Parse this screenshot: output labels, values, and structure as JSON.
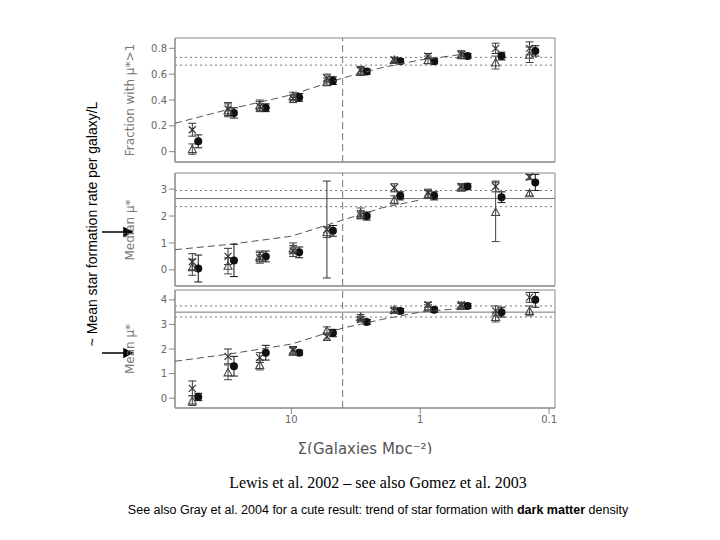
{
  "slide": {
    "side_label": "~ Mean star formation rate per galaxy/L",
    "caption": "Lewis et al. 2002 – see also Gomez et al. 2003",
    "footnote": {
      "before": "See also Gray et al. 2004 for a cute result: trend of star formation with ",
      "bold": "dark matter",
      "after": " density"
    }
  },
  "chart_data": [
    {
      "type": "scatter",
      "y_label": "Fraction with μ*>1",
      "log": "x",
      "tick_labels": "y",
      "xlim": [
        80,
        0.09
      ],
      "xticks": [
        10,
        1,
        0.1
      ],
      "ylim": [
        -0.08,
        0.88
      ],
      "yticks": [
        0,
        0.2,
        0.4,
        0.6,
        0.8
      ],
      "reference_lines": [
        {
          "y": 0.67,
          "line_style": "dotted"
        },
        {
          "y": 0.73,
          "line_style": "dotted"
        },
        {
          "x": 4,
          "line_style": "dashed"
        }
      ],
      "series": [
        {
          "type": "scatter",
          "marker": "circle",
          "color": "#111111",
          "x": [
            52.8,
            27.9,
            15.8,
            8.7,
            4.76,
            2.6,
            1.43,
            0.78,
            0.43,
            0.234,
            0.128
          ],
          "values": [
            0.08,
            0.3,
            0.34,
            0.42,
            0.55,
            0.62,
            0.7,
            0.7,
            0.74,
            0.74,
            0.78
          ],
          "errors": [
            0.05,
            0.04,
            0.03,
            0.03,
            0.03,
            0.02,
            0.02,
            0.02,
            0.02,
            0.03,
            0.04
          ]
        },
        {
          "type": "scatter",
          "marker": "x",
          "color": "#333333",
          "x": [
            58.7,
            31,
            17.6,
            9.7,
            5.3,
            2.9,
            1.59,
            0.87,
            0.48,
            0.26,
            0.142
          ],
          "values": [
            0.17,
            0.33,
            0.35,
            0.41,
            0.57,
            0.63,
            0.71,
            0.74,
            0.75,
            0.8,
            0.8
          ],
          "errors": [
            0.05,
            0.05,
            0.04,
            0.03,
            0.03,
            0.03,
            0.02,
            0.02,
            0.03,
            0.04,
            0.05
          ]
        },
        {
          "type": "scatter",
          "marker": "triangle",
          "color": "#444444",
          "x": [
            58.7,
            31,
            17.6,
            9.7,
            5.3,
            2.9,
            1.59,
            0.87,
            0.48,
            0.26,
            0.142
          ],
          "values": [
            0.02,
            0.32,
            0.36,
            0.43,
            0.54,
            0.62,
            0.71,
            0.71,
            0.75,
            0.69,
            0.75
          ],
          "errors": [
            0.04,
            0.05,
            0.04,
            0.03,
            0.03,
            0.03,
            0.02,
            0.03,
            0.03,
            0.05,
            0.06
          ]
        },
        {
          "type": "line",
          "line_style": "dashed",
          "color": "#555555",
          "x": [
            80,
            30,
            10,
            4,
            2,
            1,
            0.5
          ],
          "values": [
            0.22,
            0.33,
            0.44,
            0.57,
            0.65,
            0.71,
            0.75
          ]
        }
      ]
    },
    {
      "type": "scatter",
      "y_label": "Median μ*",
      "log": "x",
      "tick_labels": "y",
      "xlim": [
        80,
        0.09
      ],
      "xticks": [
        10,
        1,
        0.1
      ],
      "ylim": [
        -0.6,
        3.6
      ],
      "yticks": [
        0,
        1,
        2,
        3
      ],
      "reference_lines": [
        {
          "y": 2.65,
          "line_style": "solid"
        },
        {
          "y": 2.35,
          "line_style": "dotted"
        },
        {
          "y": 2.95,
          "line_style": "dotted"
        },
        {
          "x": 4,
          "line_style": "dashed"
        }
      ],
      "series": [
        {
          "type": "scatter",
          "marker": "circle",
          "color": "#111111",
          "x": [
            52.8,
            27.9,
            15.8,
            8.7,
            4.76,
            2.6,
            1.43,
            0.78,
            0.43,
            0.234,
            0.128
          ],
          "values": [
            0.05,
            0.35,
            0.5,
            0.65,
            1.45,
            2.0,
            2.75,
            2.75,
            3.1,
            2.7,
            3.25
          ],
          "errors": [
            0.5,
            0.6,
            0.2,
            0.2,
            0.2,
            0.15,
            0.15,
            0.15,
            0.1,
            0.2,
            0.3
          ]
        },
        {
          "type": "scatter",
          "marker": "x",
          "color": "#333333",
          "x": [
            58.7,
            31,
            17.6,
            9.7,
            5.3,
            2.9,
            1.59,
            0.87,
            0.48,
            0.26,
            0.142
          ],
          "values": [
            0.3,
            0.5,
            0.45,
            0.7,
            1.5,
            2.05,
            3.05,
            2.85,
            3.1,
            3.1,
            3.45
          ],
          "errors": [
            0.3,
            0.3,
            0.2,
            0.2,
            1.8,
            0.15,
            0.15,
            0.15,
            0.1,
            0.2,
            0.1
          ]
        },
        {
          "type": "scatter",
          "marker": "triangle",
          "color": "#444444",
          "x": [
            58.7,
            31,
            17.6,
            9.7,
            5.3,
            2.9,
            1.59,
            0.87,
            0.48,
            0.26,
            0.142
          ],
          "values": [
            0.1,
            0.15,
            0.5,
            0.8,
            1.4,
            2.1,
            2.6,
            2.8,
            3.05,
            2.15,
            2.85
          ],
          "errors": [
            0.3,
            0.3,
            0.2,
            0.2,
            0.2,
            0.2,
            0.15,
            0.15,
            0.1,
            1.1,
            0.1
          ]
        },
        {
          "type": "line",
          "line_style": "dashed",
          "color": "#555555",
          "x": [
            80,
            30,
            10,
            4,
            2,
            1
          ],
          "values": [
            0.75,
            0.95,
            1.25,
            1.85,
            2.3,
            2.6
          ]
        }
      ]
    },
    {
      "type": "scatter",
      "y_label": "Mean μ*",
      "x_label": "Σ(Galaxies Mpc⁻²)",
      "log": "x",
      "tick_labels": true,
      "xlim": [
        80,
        0.09
      ],
      "xticks": [
        10,
        1,
        0.1
      ],
      "ylim": [
        -0.4,
        4.4
      ],
      "yticks": [
        0,
        1,
        2,
        3,
        4
      ],
      "reference_lines": [
        {
          "y": 3.5,
          "line_style": "solid"
        },
        {
          "y": 3.3,
          "line_style": "dotted"
        },
        {
          "y": 3.75,
          "line_style": "dotted"
        },
        {
          "x": 4,
          "line_style": "dashed"
        }
      ],
      "series": [
        {
          "type": "scatter",
          "marker": "circle",
          "color": "#111111",
          "x": [
            52.8,
            27.9,
            15.8,
            8.7,
            4.76,
            2.6,
            1.43,
            0.78,
            0.43,
            0.234,
            0.128
          ],
          "values": [
            0.05,
            1.3,
            1.85,
            1.85,
            2.65,
            3.1,
            3.55,
            3.6,
            3.75,
            3.5,
            4.0
          ],
          "errors": [
            0.15,
            0.4,
            0.3,
            0.1,
            0.15,
            0.1,
            0.1,
            0.1,
            0.1,
            0.2,
            0.3
          ]
        },
        {
          "type": "scatter",
          "marker": "x",
          "color": "#333333",
          "x": [
            58.7,
            31,
            17.6,
            9.7,
            5.3,
            2.9,
            1.59,
            0.87,
            0.48,
            0.26,
            0.142
          ],
          "values": [
            0.4,
            1.7,
            1.65,
            1.95,
            2.5,
            3.2,
            3.55,
            3.8,
            3.8,
            3.55,
            4.1
          ],
          "errors": [
            0.3,
            0.3,
            0.2,
            0.15,
            0.15,
            0.1,
            0.1,
            0.1,
            0.1,
            0.2,
            0.2
          ]
        },
        {
          "type": "scatter",
          "marker": "triangle",
          "color": "#444444",
          "x": [
            58.7,
            31,
            17.6,
            9.7,
            5.3,
            2.9,
            1.59,
            0.87,
            0.48,
            0.26,
            0.142
          ],
          "values": [
            -0.1,
            1.05,
            1.35,
            1.9,
            2.75,
            3.3,
            3.6,
            3.7,
            3.75,
            3.3,
            3.55
          ],
          "errors": [
            0.2,
            0.3,
            0.2,
            0.15,
            0.15,
            0.1,
            0.1,
            0.1,
            0.1,
            0.2,
            0.2
          ]
        },
        {
          "type": "line",
          "line_style": "dashed",
          "color": "#555555",
          "x": [
            80,
            30,
            10,
            4,
            2,
            1,
            0.5
          ],
          "values": [
            1.5,
            1.8,
            2.2,
            2.85,
            3.2,
            3.5,
            3.65
          ]
        }
      ]
    }
  ]
}
